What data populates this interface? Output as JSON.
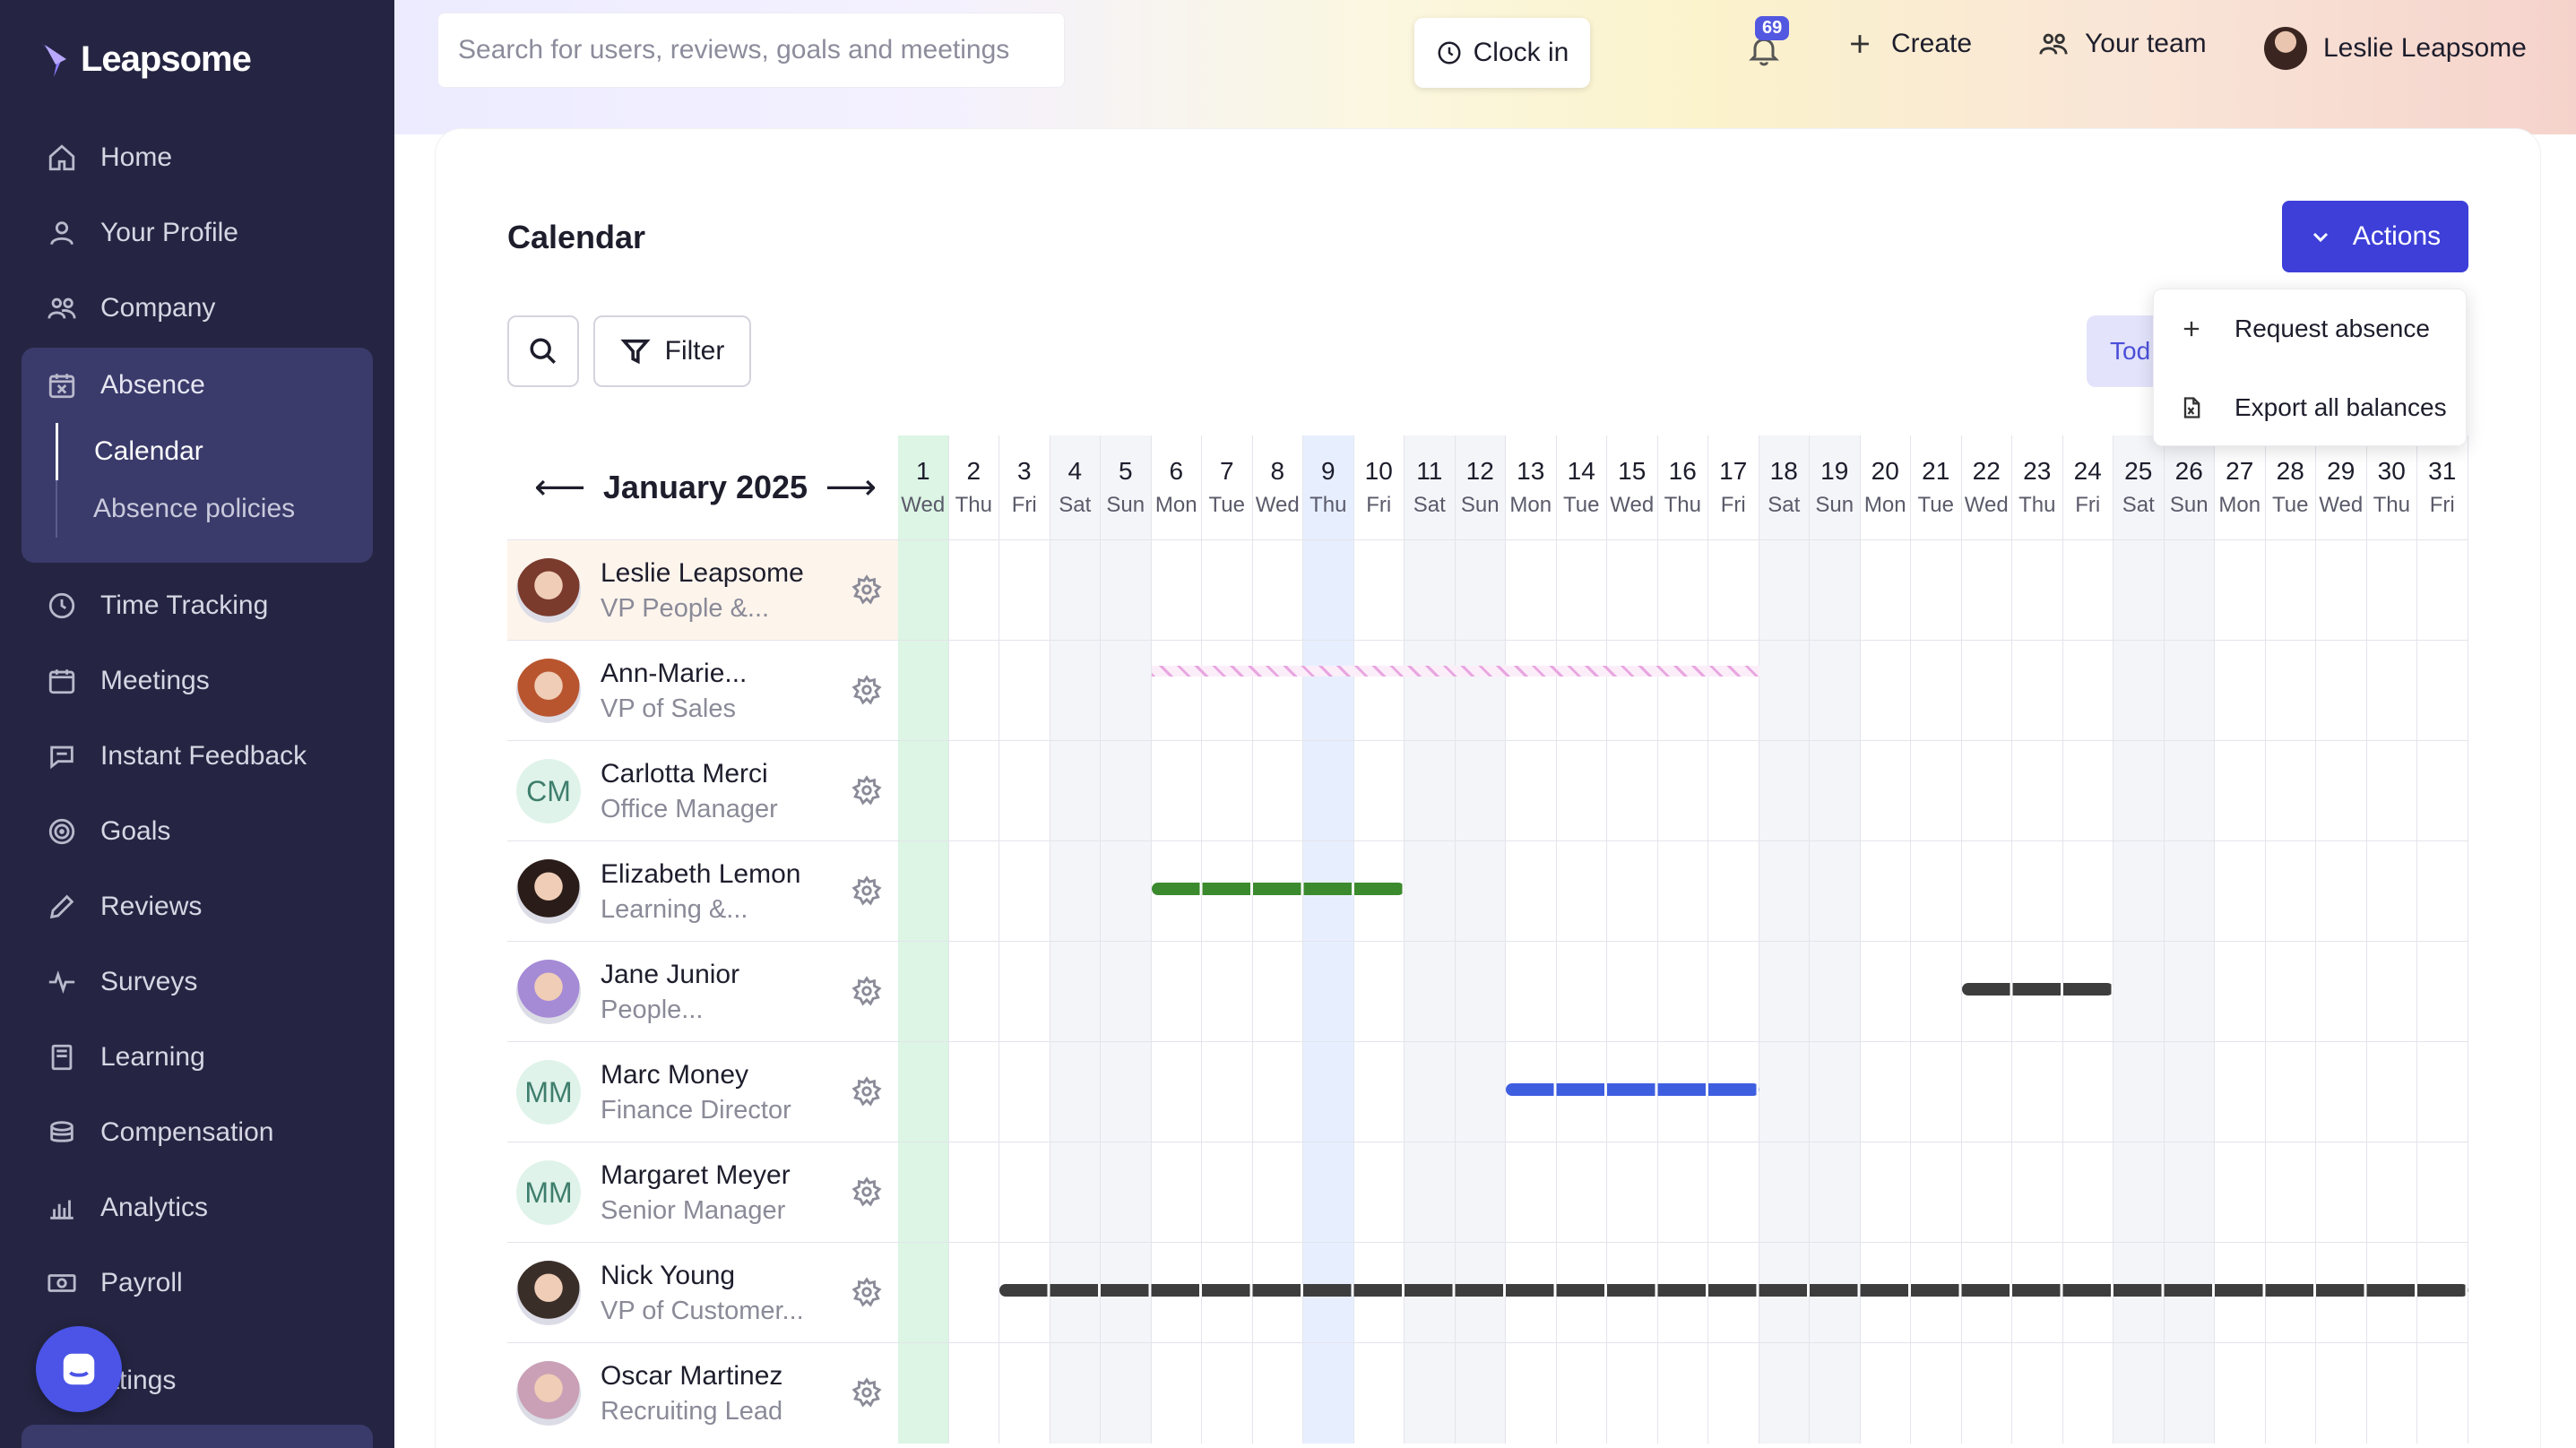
{
  "brand": {
    "name": "Leapsome"
  },
  "sidebar": {
    "items": [
      {
        "label": "Home",
        "icon": "home-icon"
      },
      {
        "label": "Your Profile",
        "icon": "user-icon"
      },
      {
        "label": "Company",
        "icon": "people-icon"
      }
    ],
    "absence": {
      "label": "Absence",
      "icon": "calendar-x-icon",
      "subitems": [
        {
          "label": "Calendar",
          "active": true
        },
        {
          "label": "Absence policies",
          "active": false
        }
      ]
    },
    "items_after": [
      {
        "label": "Time Tracking",
        "icon": "clock-icon"
      },
      {
        "label": "Meetings",
        "icon": "calendar-icon"
      },
      {
        "label": "Instant Feedback",
        "icon": "chat-icon"
      },
      {
        "label": "Goals",
        "icon": "target-icon"
      },
      {
        "label": "Reviews",
        "icon": "pencil-icon"
      },
      {
        "label": "Surveys",
        "icon": "pulse-icon"
      },
      {
        "label": "Learning",
        "icon": "book-icon"
      },
      {
        "label": "Compensation",
        "icon": "coins-icon"
      },
      {
        "label": "Analytics",
        "icon": "chart-icon"
      },
      {
        "label": "Payroll",
        "icon": "money-icon"
      }
    ],
    "settings_label": "ettings"
  },
  "topbar": {
    "search_placeholder": "Search for users, reviews, goals and meetings",
    "clock_in": "Clock in",
    "notifications_count": "69",
    "create": "Create",
    "your_team": "Your team",
    "user_name": "Leslie Leapsome"
  },
  "page": {
    "title": "Calendar",
    "actions": "Actions",
    "filter": "Filter",
    "today": "Tod",
    "dropdown": [
      {
        "label": "Request absence",
        "icon": "plus-icon"
      },
      {
        "label": "Export all balances",
        "icon": "file-excel-icon"
      }
    ]
  },
  "calendar": {
    "month": "January 2025",
    "prev_arrow": "⟵",
    "next_arrow": "⟶",
    "today_index": 0,
    "selected_index": 8,
    "days": [
      {
        "n": "1",
        "w": "Wed"
      },
      {
        "n": "2",
        "w": "Thu"
      },
      {
        "n": "3",
        "w": "Fri"
      },
      {
        "n": "4",
        "w": "Sat"
      },
      {
        "n": "5",
        "w": "Sun"
      },
      {
        "n": "6",
        "w": "Mon"
      },
      {
        "n": "7",
        "w": "Tue"
      },
      {
        "n": "8",
        "w": "Wed"
      },
      {
        "n": "9",
        "w": "Thu"
      },
      {
        "n": "10",
        "w": "Fri"
      },
      {
        "n": "11",
        "w": "Sat"
      },
      {
        "n": "12",
        "w": "Sun"
      },
      {
        "n": "13",
        "w": "Mon"
      },
      {
        "n": "14",
        "w": "Tue"
      },
      {
        "n": "15",
        "w": "Wed"
      },
      {
        "n": "16",
        "w": "Thu"
      },
      {
        "n": "17",
        "w": "Fri"
      },
      {
        "n": "18",
        "w": "Sat"
      },
      {
        "n": "19",
        "w": "Sun"
      },
      {
        "n": "20",
        "w": "Mon"
      },
      {
        "n": "21",
        "w": "Tue"
      },
      {
        "n": "22",
        "w": "Wed"
      },
      {
        "n": "23",
        "w": "Thu"
      },
      {
        "n": "24",
        "w": "Fri"
      },
      {
        "n": "25",
        "w": "Sat"
      },
      {
        "n": "26",
        "w": "Sun"
      },
      {
        "n": "27",
        "w": "Mon"
      },
      {
        "n": "28",
        "w": "Tue"
      },
      {
        "n": "29",
        "w": "Wed"
      },
      {
        "n": "30",
        "w": "Thu"
      },
      {
        "n": "31",
        "w": "Fri"
      }
    ],
    "colors": {
      "today": "#dcf5e4",
      "selected": "#e7efff",
      "weekend": "#f4f5f8",
      "highlight_row": "#fdf4ec"
    },
    "people": [
      {
        "name": "Leslie Leapsome",
        "role": "VP People &...",
        "avatar": "photo",
        "highlight": true,
        "absences": []
      },
      {
        "name": "Ann-Marie...",
        "role": "VP of Sales",
        "avatar": "photo",
        "absences": [
          {
            "start": 6,
            "end": 17,
            "color": "#e8a6e0",
            "pattern": "hatched"
          }
        ]
      },
      {
        "name": "Carlotta Merci",
        "role": "Office Manager",
        "avatar": "initials",
        "initials": "CM",
        "absences": []
      },
      {
        "name": "Elizabeth Lemon",
        "role": "Learning &...",
        "avatar": "photo",
        "absences": [
          {
            "start": 6,
            "end": 10,
            "color": "#3b8a2e"
          }
        ]
      },
      {
        "name": "Jane Junior",
        "role": "People...",
        "avatar": "photo",
        "absences": [
          {
            "start": 22,
            "end": 24,
            "color": "#3d3d3d"
          }
        ]
      },
      {
        "name": "Marc Money",
        "role": "Finance Director",
        "avatar": "initials",
        "initials": "MM",
        "absences": [
          {
            "start": 13,
            "end": 17,
            "color": "#3e5ee0"
          }
        ]
      },
      {
        "name": "Margaret Meyer",
        "role": "Senior Manager",
        "avatar": "initials",
        "initials": "MM",
        "absences": []
      },
      {
        "name": "Nick Young",
        "role": "VP of Customer...",
        "avatar": "photo",
        "absences": [
          {
            "start": 3,
            "end": 31,
            "color": "#3d3d3d"
          }
        ]
      },
      {
        "name": "Oscar Martinez",
        "role": "Recruiting Lead",
        "avatar": "photo",
        "absences": []
      }
    ]
  }
}
